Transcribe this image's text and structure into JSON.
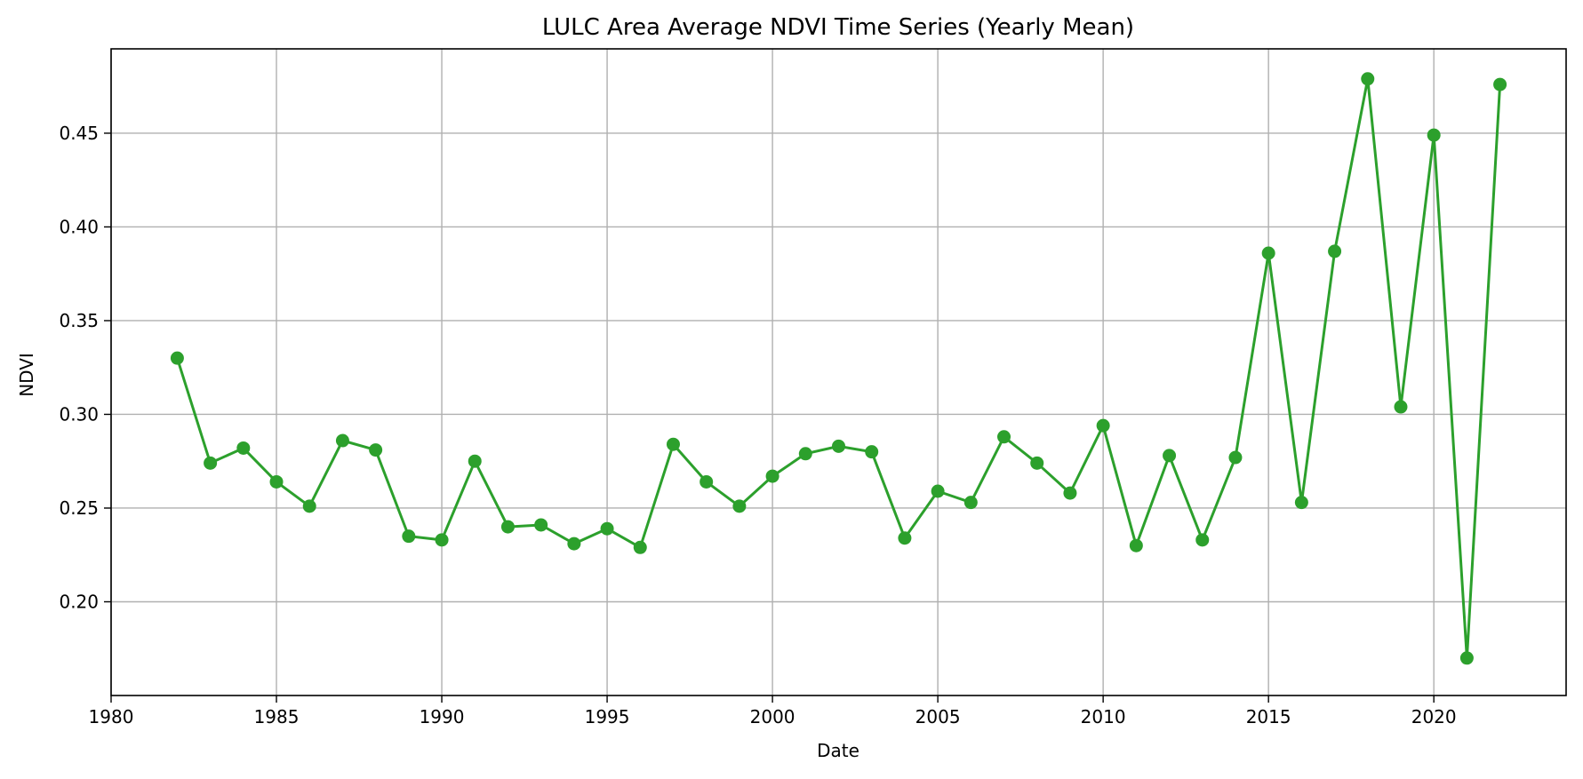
{
  "colors": {
    "series": "#2ca02c",
    "grid": "#b0b0b0",
    "axis": "#000000",
    "background": "#ffffff"
  },
  "chart_data": {
    "type": "line",
    "title": "LULC Area Average NDVI Time Series (Yearly Mean)",
    "xlabel": "Date",
    "ylabel": "NDVI",
    "xlim": [
      1980,
      2024
    ],
    "ylim": [
      0.15,
      0.495
    ],
    "grid": true,
    "marker": "circle",
    "x_ticks": [
      1980,
      1985,
      1990,
      1995,
      2000,
      2005,
      2010,
      2015,
      2020
    ],
    "x_tick_labels": [
      "1980",
      "1985",
      "1990",
      "1995",
      "2000",
      "2005",
      "2010",
      "2015",
      "2020"
    ],
    "y_ticks": [
      0.2,
      0.25,
      0.3,
      0.35,
      0.4,
      0.45
    ],
    "y_tick_labels": [
      "0.20",
      "0.25",
      "0.30",
      "0.35",
      "0.40",
      "0.45"
    ],
    "series": [
      {
        "x": [
          1982,
          1983,
          1984,
          1985,
          1986,
          1987,
          1988,
          1989,
          1990,
          1991,
          1992,
          1993,
          1994,
          1995,
          1996,
          1997,
          1998,
          1999,
          2000,
          2001,
          2002,
          2003,
          2004,
          2005,
          2006,
          2007,
          2008,
          2009,
          2010,
          2011,
          2012,
          2013,
          2014,
          2015,
          2016,
          2017,
          2018,
          2019,
          2020,
          2021,
          2022
        ],
        "values": [
          0.33,
          0.274,
          0.282,
          0.264,
          0.251,
          0.286,
          0.281,
          0.235,
          0.233,
          0.275,
          0.24,
          0.241,
          0.231,
          0.239,
          0.229,
          0.284,
          0.264,
          0.251,
          0.267,
          0.279,
          0.283,
          0.28,
          0.234,
          0.259,
          0.253,
          0.288,
          0.274,
          0.258,
          0.294,
          0.23,
          0.278,
          0.233,
          0.277,
          0.386,
          0.253,
          0.387,
          0.479,
          0.304,
          0.449,
          0.17,
          0.476
        ]
      }
    ]
  }
}
